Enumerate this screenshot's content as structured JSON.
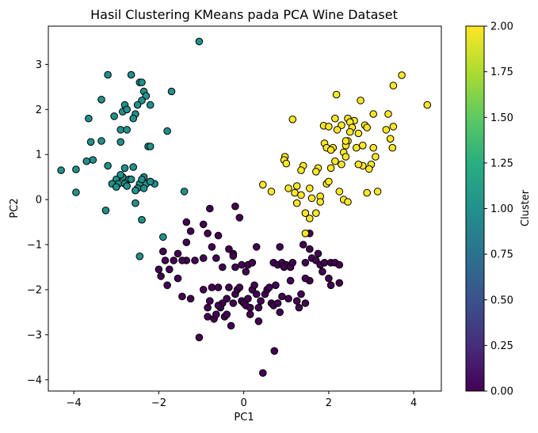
{
  "chart_data": {
    "type": "scatter",
    "title": "Hasil Clustering KMeans pada PCA Wine Dataset",
    "xlabel": "PC1",
    "ylabel": "PC2",
    "xlim": [
      -4.6,
      4.65
    ],
    "ylim": [
      -4.25,
      3.85
    ],
    "xticks": [
      -4,
      -2,
      0,
      2,
      4
    ],
    "yticks": [
      -4,
      -3,
      -2,
      -1,
      0,
      1,
      2,
      3
    ],
    "grid": false,
    "colorbar": {
      "label": "Cluster",
      "range": [
        0.0,
        2.0
      ],
      "ticks": [
        "0.00",
        "0.25",
        "0.50",
        "0.75",
        "1.00",
        "1.25",
        "1.50",
        "1.75",
        "2.00"
      ],
      "colormap": "viridis"
    },
    "colors": {
      "cluster_0": "#440154",
      "cluster_1": "#21918c",
      "cluster_2": "#fde725",
      "edge": "#000000"
    },
    "series": [
      {
        "cluster": 0,
        "color": "#440154",
        "points": [
          [
            -1.05,
            -3.06
          ],
          [
            -0.85,
            -2.4
          ],
          [
            -0.85,
            -2.6
          ],
          [
            -0.8,
            -2.25
          ],
          [
            -0.75,
            -1.95
          ],
          [
            -0.7,
            -2.65
          ],
          [
            -0.65,
            -2.55
          ],
          [
            -0.6,
            -1.95
          ],
          [
            -0.55,
            -2.4
          ],
          [
            -0.5,
            -2.3
          ],
          [
            -0.45,
            -2.6
          ],
          [
            -0.4,
            -2.2
          ],
          [
            -0.35,
            -1.95
          ],
          [
            -0.3,
            -2.8
          ],
          [
            -0.25,
            -2.3
          ],
          [
            -0.2,
            -2.1
          ],
          [
            -0.15,
            -2.0
          ],
          [
            -0.1,
            -1.95
          ],
          [
            -0.05,
            -2.25
          ],
          [
            0.0,
            -2.3
          ],
          [
            0.05,
            -2.35
          ],
          [
            0.1,
            -2.2
          ],
          [
            0.15,
            -2.4
          ],
          [
            0.2,
            -2.0
          ],
          [
            0.25,
            -1.9
          ],
          [
            0.3,
            -2.1
          ],
          [
            0.35,
            -2.4
          ],
          [
            0.4,
            -2.25
          ],
          [
            0.5,
            -2.1
          ],
          [
            0.55,
            -2.0
          ],
          [
            0.6,
            -1.95
          ],
          [
            0.65,
            -2.3
          ],
          [
            0.7,
            -2.35
          ],
          [
            0.75,
            -1.9
          ],
          [
            0.8,
            -2.3
          ],
          [
            0.85,
            -2.5
          ],
          [
            0.9,
            -2.15
          ],
          [
            1.05,
            -2.2
          ],
          [
            1.25,
            -2.25
          ],
          [
            1.35,
            -2.1
          ],
          [
            1.45,
            -2.3
          ],
          [
            1.3,
            -2.4
          ],
          [
            0.72,
            -3.36
          ],
          [
            0.45,
            -3.85
          ],
          [
            0.35,
            -2.7
          ],
          [
            -0.2,
            -1.5
          ],
          [
            -0.5,
            -1.5
          ],
          [
            -0.05,
            -1.45
          ],
          [
            0.05,
            -1.6
          ],
          [
            0.1,
            -1.45
          ],
          [
            0.2,
            -1.4
          ],
          [
            0.3,
            -1.05
          ],
          [
            0.7,
            -1.4
          ],
          [
            0.8,
            -1.45
          ],
          [
            0.9,
            -1.4
          ],
          [
            1.0,
            -1.45
          ],
          [
            0.95,
            -1.5
          ],
          [
            1.1,
            -1.5
          ],
          [
            1.15,
            -1.4
          ],
          [
            1.45,
            -1.4
          ],
          [
            1.6,
            -1.3
          ],
          [
            1.7,
            -1.35
          ],
          [
            1.8,
            -1.45
          ],
          [
            1.9,
            -1.4
          ],
          [
            2.05,
            -1.4
          ],
          [
            2.15,
            -1.4
          ],
          [
            1.85,
            -1.6
          ],
          [
            2.0,
            -1.75
          ],
          [
            2.05,
            -1.9
          ],
          [
            2.25,
            -1.85
          ],
          [
            2.25,
            -1.45
          ],
          [
            1.55,
            -1.8
          ],
          [
            1.45,
            -1.75
          ],
          [
            1.1,
            -1.8
          ],
          [
            -0.2,
            -0.15
          ],
          [
            -0.1,
            -0.4
          ],
          [
            -0.8,
            -0.2
          ],
          [
            -0.95,
            -0.55
          ],
          [
            -1.35,
            -0.5
          ],
          [
            -1.25,
            -0.7
          ],
          [
            -1.35,
            -0.95
          ],
          [
            -0.85,
            -0.75
          ],
          [
            -0.6,
            -0.8
          ],
          [
            -0.75,
            -1.05
          ],
          [
            -0.35,
            -1.1
          ],
          [
            -1.55,
            -1.2
          ],
          [
            -1.65,
            -1.35
          ],
          [
            -1.85,
            -1.35
          ],
          [
            -1.75,
            -1.55
          ],
          [
            -1.8,
            -1.9
          ],
          [
            -1.95,
            -1.7
          ],
          [
            -1.55,
            -1.75
          ],
          [
            -1.45,
            -2.15
          ],
          [
            -1.25,
            -2.2
          ],
          [
            -1.35,
            -1.35
          ],
          [
            -1.45,
            -1.35
          ],
          [
            -1.9,
            -1.15
          ],
          [
            -2.0,
            -1.55
          ],
          [
            -1.15,
            -1.35
          ],
          [
            -0.95,
            -1.3
          ],
          [
            -0.65,
            -1.3
          ],
          [
            -0.25,
            -1.2
          ],
          [
            0.85,
            -1.05
          ],
          [
            1.55,
            -0.75
          ],
          [
            1.4,
            -1.0
          ],
          [
            1.55,
            -1.1
          ],
          [
            1.75,
            -1.2
          ],
          [
            -0.6,
            -2.35
          ],
          [
            0.15,
            -2.55
          ],
          [
            -0.4,
            -2.55
          ],
          [
            -0.95,
            -2.0
          ],
          [
            -0.25,
            -1.25
          ]
        ]
      },
      {
        "cluster": 1,
        "color": "#21918c",
        "points": [
          [
            -1.05,
            3.51
          ],
          [
            -3.2,
            2.77
          ],
          [
            -2.65,
            2.77
          ],
          [
            -2.45,
            2.6
          ],
          [
            -2.4,
            2.6
          ],
          [
            -2.35,
            2.4
          ],
          [
            -2.3,
            2.3
          ],
          [
            -2.4,
            2.2
          ],
          [
            -2.5,
            2.1
          ],
          [
            -2.8,
            2.1
          ],
          [
            -2.85,
            1.95
          ],
          [
            -2.75,
            2.0
          ],
          [
            -2.55,
            1.9
          ],
          [
            -2.2,
            2.1
          ],
          [
            -1.7,
            2.4
          ],
          [
            -3.35,
            2.22
          ],
          [
            -3.65,
            1.8
          ],
          [
            -3.6,
            1.28
          ],
          [
            -3.35,
            1.3
          ],
          [
            -3.05,
            1.85
          ],
          [
            -2.9,
            1.55
          ],
          [
            -2.75,
            1.55
          ],
          [
            -2.6,
            1.8
          ],
          [
            -2.9,
            1.28
          ],
          [
            -2.25,
            1.18
          ],
          [
            -2.2,
            1.18
          ],
          [
            -1.8,
            1.52
          ],
          [
            -3.55,
            0.88
          ],
          [
            -3.7,
            0.85
          ],
          [
            -3.2,
            0.75
          ],
          [
            -3.0,
            0.45
          ],
          [
            -2.85,
            0.5
          ],
          [
            -2.7,
            0.45
          ],
          [
            -2.6,
            0.72
          ],
          [
            -2.65,
            0.45
          ],
          [
            -2.95,
            0.35
          ],
          [
            -2.8,
            0.35
          ],
          [
            -3.1,
            0.35
          ],
          [
            -2.45,
            0.35
          ],
          [
            -2.3,
            0.35
          ],
          [
            -2.35,
            0.5
          ],
          [
            -2.2,
            0.4
          ],
          [
            -2.1,
            0.35
          ],
          [
            -2.4,
            0.45
          ],
          [
            -2.5,
            0.25
          ],
          [
            -2.55,
            0.2
          ],
          [
            -2.75,
            0.3
          ],
          [
            -3.0,
            0.28
          ],
          [
            -2.9,
            0.55
          ],
          [
            -2.8,
            0.7
          ],
          [
            -2.35,
            0.25
          ],
          [
            -1.4,
            0.18
          ],
          [
            -4.3,
            0.65
          ],
          [
            -3.95,
            0.67
          ],
          [
            -3.95,
            0.16
          ],
          [
            -3.25,
            -0.24
          ],
          [
            -2.55,
            -0.08
          ],
          [
            -2.4,
            -0.45
          ],
          [
            -1.9,
            -0.83
          ],
          [
            -2.45,
            -1.26
          ],
          [
            -2.2,
            0.4
          ]
        ]
      },
      {
        "cluster": 2,
        "color": "#fde725",
        "points": [
          [
            3.72,
            2.76
          ],
          [
            3.52,
            2.53
          ],
          [
            4.32,
            2.1
          ],
          [
            2.18,
            2.33
          ],
          [
            2.75,
            2.2
          ],
          [
            3.4,
            1.9
          ],
          [
            3.52,
            1.62
          ],
          [
            2.45,
            1.8
          ],
          [
            2.6,
            1.75
          ],
          [
            2.85,
            1.65
          ],
          [
            2.9,
            1.6
          ],
          [
            3.05,
            1.9
          ],
          [
            3.35,
            1.55
          ],
          [
            3.45,
            1.35
          ],
          [
            3.5,
            1.15
          ],
          [
            2.5,
            1.72
          ],
          [
            2.3,
            1.65
          ],
          [
            2.15,
            1.8
          ],
          [
            1.88,
            1.64
          ],
          [
            2.0,
            1.62
          ],
          [
            2.2,
            1.55
          ],
          [
            2.55,
            1.6
          ],
          [
            2.7,
            1.47
          ],
          [
            2.45,
            1.3
          ],
          [
            2.4,
            1.2
          ],
          [
            2.35,
            1.05
          ],
          [
            2.4,
            0.95
          ],
          [
            2.3,
            0.78
          ],
          [
            2.15,
            0.85
          ],
          [
            2.1,
            1.15
          ],
          [
            1.9,
            1.25
          ],
          [
            1.95,
            1.15
          ],
          [
            2.05,
            1.1
          ],
          [
            2.4,
            1.3
          ],
          [
            2.5,
            1.5
          ],
          [
            2.65,
            1.15
          ],
          [
            2.8,
            1.2
          ],
          [
            3.05,
            1.15
          ],
          [
            3.1,
            0.95
          ],
          [
            3.0,
            0.78
          ],
          [
            2.8,
            0.75
          ],
          [
            2.7,
            0.78
          ],
          [
            2.95,
            0.68
          ],
          [
            2.9,
            0.15
          ],
          [
            3.15,
            0.18
          ],
          [
            1.15,
            1.78
          ],
          [
            1.75,
            0.7
          ],
          [
            1.7,
            0.62
          ],
          [
            1.4,
            0.75
          ],
          [
            1.35,
            0.65
          ],
          [
            1.25,
            0.3
          ],
          [
            1.2,
            0.15
          ],
          [
            0.97,
            0.95
          ],
          [
            0.95,
            0.88
          ],
          [
            1.0,
            0.8
          ],
          [
            1.95,
            0.35
          ],
          [
            2.0,
            0.4
          ],
          [
            2.25,
            0.18
          ],
          [
            2.35,
            0.0
          ],
          [
            2.45,
            -0.05
          ],
          [
            1.8,
            0.07
          ],
          [
            1.6,
            0.03
          ],
          [
            1.8,
            -0.05
          ],
          [
            1.35,
            0.1
          ],
          [
            1.05,
            0.25
          ],
          [
            1.25,
            -0.08
          ],
          [
            1.7,
            -0.3
          ],
          [
            1.55,
            -0.42
          ],
          [
            1.45,
            -0.3
          ],
          [
            1.45,
            -0.75
          ],
          [
            0.45,
            0.33
          ],
          [
            0.65,
            0.18
          ],
          [
            2.05,
            0.7
          ],
          [
            1.55,
            0.25
          ]
        ]
      }
    ]
  }
}
